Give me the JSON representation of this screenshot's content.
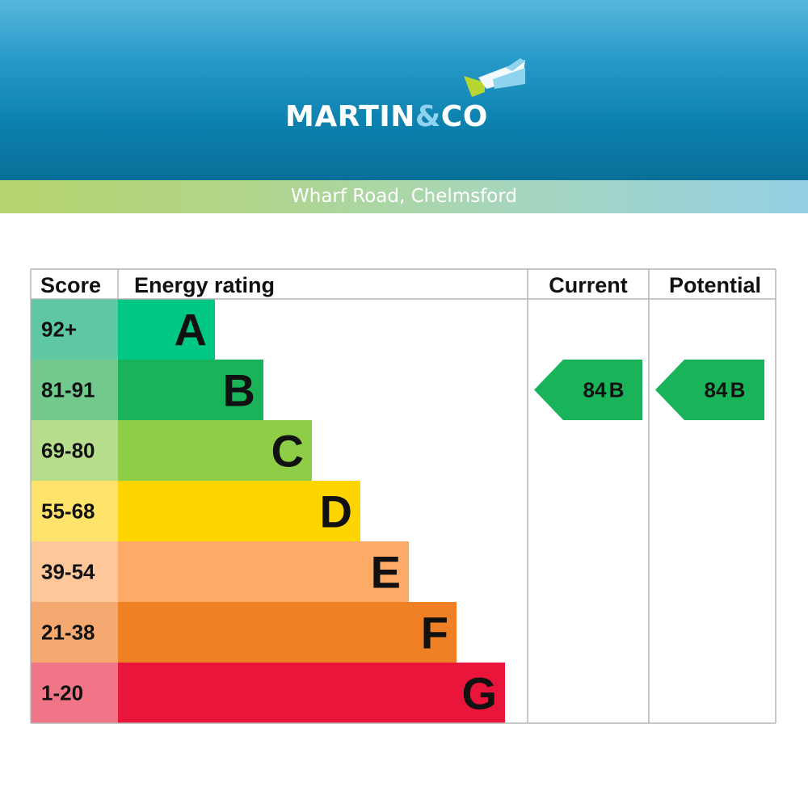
{
  "header": {
    "logo_name": "MARTIN",
    "logo_amp": "&",
    "logo_suffix": "CO",
    "address": "Wharf Road, Chelmsford"
  },
  "chart_data": {
    "type": "table",
    "columns": [
      "Score",
      "Energy rating",
      "Current",
      "Potential"
    ],
    "bands": [
      {
        "score": "92+",
        "letter": "A",
        "color": "#00c781",
        "score_bg": "#5ec8a3",
        "bar_fraction": 0.24
      },
      {
        "score": "81-91",
        "letter": "B",
        "color": "#19b459",
        "score_bg": "#72c98e",
        "bar_fraction": 0.36
      },
      {
        "score": "69-80",
        "letter": "C",
        "color": "#8dce46",
        "score_bg": "#b5dd8b",
        "bar_fraction": 0.48
      },
      {
        "score": "55-68",
        "letter": "D",
        "color": "#ffd500",
        "score_bg": "#ffe36a",
        "bar_fraction": 0.6
      },
      {
        "score": "39-54",
        "letter": "E",
        "color": "#fcaa65",
        "score_bg": "#fdc79a",
        "bar_fraction": 0.72
      },
      {
        "score": "21-38",
        "letter": "F",
        "color": "#ef8023",
        "score_bg": "#f4a970",
        "bar_fraction": 0.84
      },
      {
        "score": "1-20",
        "letter": "G",
        "color": "#e9153b",
        "score_bg": "#f07587",
        "bar_fraction": 0.96
      }
    ],
    "current": {
      "value": 84,
      "letter": "B",
      "color": "#19b459"
    },
    "potential": {
      "value": 84,
      "letter": "B",
      "color": "#19b459"
    }
  }
}
